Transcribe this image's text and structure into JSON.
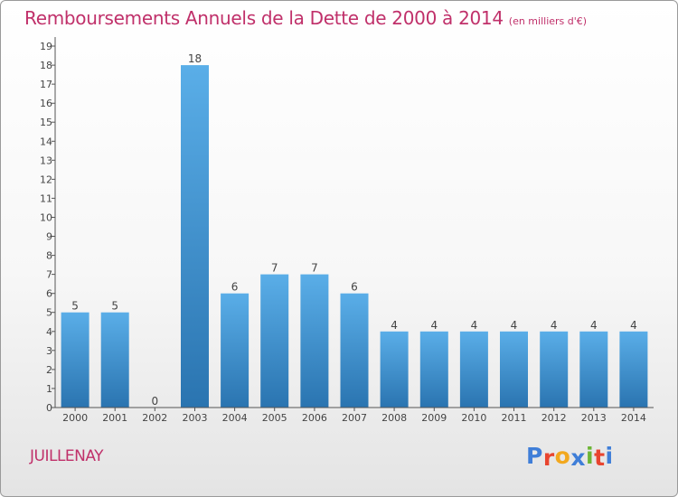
{
  "header": {
    "title": "Remboursements Annuels de la Dette de 2000 à 2014",
    "subtitle": "(en milliers d'€)"
  },
  "footer": {
    "commune": "JUILLENAY",
    "brand_letters": [
      "P",
      "r",
      "o",
      "x",
      "i",
      "t",
      "i"
    ]
  },
  "colors": {
    "title": "#c0306a",
    "bar_light": "#5aaee8",
    "bar_dark": "#2a74b0",
    "brand": [
      "#3f7ed8",
      "#e8452f",
      "#f2a81e",
      "#3f7ed8",
      "#6cb536",
      "#e8452f",
      "#3f7ed8"
    ]
  },
  "chart_data": {
    "type": "bar",
    "title": "Remboursements Annuels de la Dette de 2000 à 2014",
    "subtitle": "(en milliers d'€)",
    "categories": [
      "2000",
      "2001",
      "2002",
      "2003",
      "2004",
      "2005",
      "2006",
      "2007",
      "2008",
      "2009",
      "2010",
      "2011",
      "2012",
      "2013",
      "2014"
    ],
    "values": [
      5,
      5,
      0,
      18,
      6,
      7,
      7,
      6,
      4,
      4,
      4,
      4,
      4,
      4,
      4
    ],
    "data_labels": [
      "5",
      "5",
      "0",
      "18",
      "6",
      "7",
      "7",
      "6",
      "4",
      "4",
      "4",
      "4",
      "4",
      "4",
      "4"
    ],
    "y_ticks": [
      "0",
      "1",
      "2",
      "3",
      "4",
      "5",
      "6",
      "7",
      "8",
      "9",
      "10",
      "11",
      "12",
      "13",
      "14",
      "15",
      "16",
      "17",
      "18",
      "19"
    ],
    "ylim": [
      0,
      19
    ],
    "xlabel": "",
    "ylabel": "",
    "grid": false,
    "legend": "none"
  }
}
